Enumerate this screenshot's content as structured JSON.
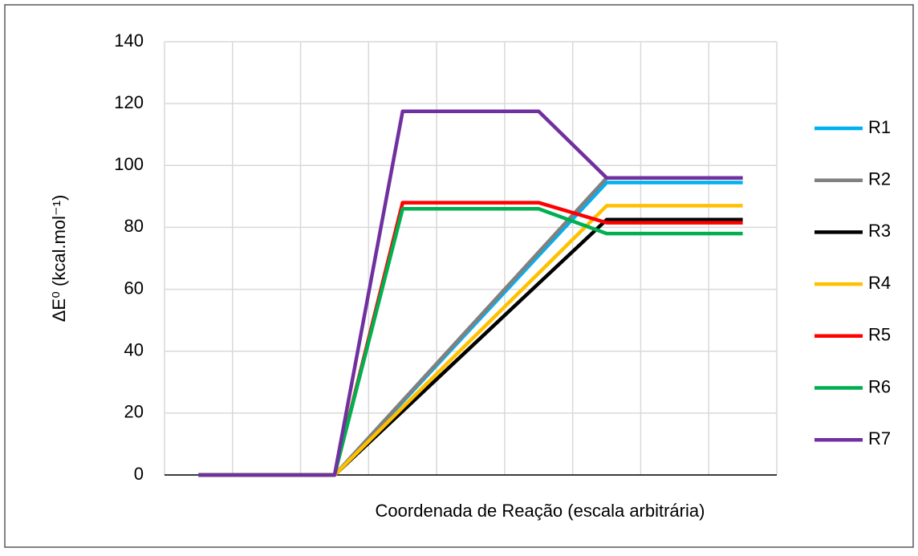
{
  "chart_data": {
    "type": "line",
    "ylabel": "ΔE⁰ (kcal.mol⁻¹)",
    "xlabel": "Coordenada de Reação (escala arbitrária)",
    "x": [
      0,
      2,
      3,
      5,
      6,
      8
    ],
    "xlim": [
      -0.5,
      8.5
    ],
    "xticks": [
      -0.5,
      0.5,
      1.5,
      2.5,
      3.5,
      4.5,
      5.5,
      6.5,
      7.5,
      8.5
    ],
    "ylim": [
      0,
      140
    ],
    "yticks": [
      0,
      20,
      40,
      60,
      80,
      100,
      120,
      140
    ],
    "grid": true,
    "legend": "right",
    "series": [
      {
        "name": "R1",
        "color": "#00b0f0",
        "values": [
          0,
          0,
          23.6,
          70.9,
          94.5,
          94.5
        ]
      },
      {
        "name": "R2",
        "color": "#808080",
        "values": [
          0,
          0,
          24,
          72,
          96,
          96
        ]
      },
      {
        "name": "R3",
        "color": "#000000",
        "values": [
          0,
          0,
          20.6,
          61.9,
          82.5,
          82.5
        ]
      },
      {
        "name": "R4",
        "color": "#ffc000",
        "values": [
          0,
          0,
          21.8,
          65.2,
          87,
          87
        ]
      },
      {
        "name": "R5",
        "color": "#ff0000",
        "values": [
          0,
          0,
          88,
          88,
          81.5,
          81.5
        ]
      },
      {
        "name": "R6",
        "color": "#00b050",
        "values": [
          0,
          0,
          86,
          86,
          78,
          78
        ]
      },
      {
        "name": "R7",
        "color": "#7030a0",
        "values": [
          0,
          0,
          117.5,
          117.5,
          96,
          96
        ]
      }
    ]
  }
}
